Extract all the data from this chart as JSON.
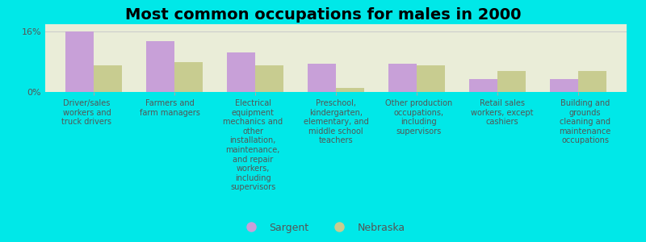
{
  "title": "Most common occupations for males in 2000",
  "categories": [
    "Driver/sales\nworkers and\ntruck drivers",
    "Farmers and\nfarm managers",
    "Electrical\nequipment\nmechanics and\nother\ninstallation,\nmaintenance,\nand repair\nworkers,\nincluding\nsupervisors",
    "Preschool,\nkindergarten,\nelementary, and\nmiddle school\nteachers",
    "Other production\noccupations,\nincluding\nsupervisors",
    "Retail sales\nworkers, except\ncashiers",
    "Building and\ngrounds\ncleaning and\nmaintenance\noccupations"
  ],
  "sargent_values": [
    16.0,
    13.5,
    10.5,
    7.5,
    7.5,
    3.5,
    3.5
  ],
  "nebraska_values": [
    7.0,
    8.0,
    7.0,
    1.0,
    7.0,
    5.5,
    5.5
  ],
  "sargent_color": "#c8a0d8",
  "nebraska_color": "#c8cc90",
  "background_color": "#00e8e8",
  "plot_background": "#eaedd8",
  "ylim": [
    0,
    18
  ],
  "bar_width": 0.35,
  "legend_sargent": "Sargent",
  "legend_nebraska": "Nebraska",
  "title_fontsize": 14,
  "tick_fontsize": 8,
  "label_fontsize": 7
}
